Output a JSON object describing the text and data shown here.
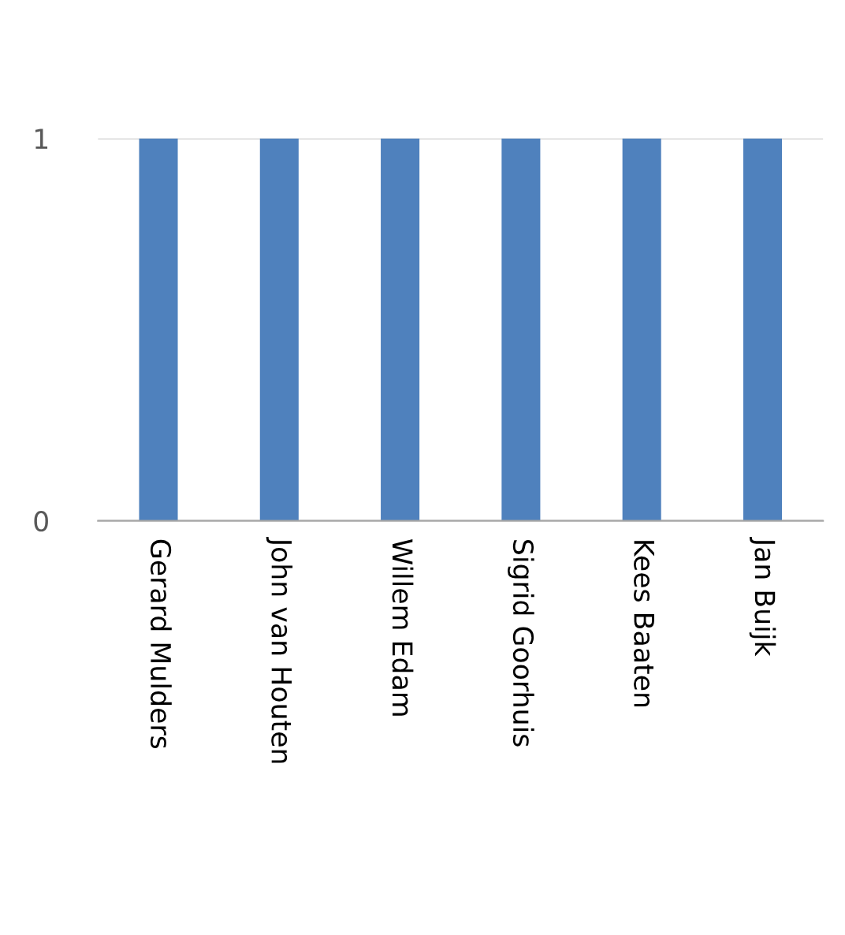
{
  "chart_data": {
    "type": "bar",
    "categories": [
      "Gerard Mulders",
      "John van Houten",
      "Willem Edam",
      "Sigrid Goorhuis",
      "Kees Baaten",
      "Jan Buijk"
    ],
    "values": [
      1,
      1,
      1,
      1,
      1,
      1
    ],
    "color": "#4f81bd",
    "ylim": [
      0,
      1
    ],
    "yticks": [
      0,
      1
    ],
    "grid": "y"
  }
}
